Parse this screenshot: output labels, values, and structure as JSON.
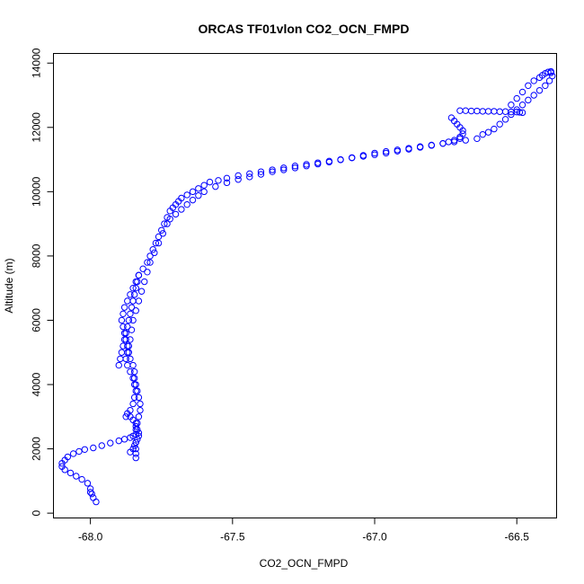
{
  "chart_data": {
    "type": "scatter",
    "title": "ORCAS TF01vlon CO2_OCN_FMPD",
    "xlabel": "CO2_OCN_FMPD",
    "ylabel": "Altitude (m)",
    "xlim": [
      -68.13,
      -66.36
    ],
    "ylim": [
      -150,
      14300
    ],
    "xticks": [
      -68.0,
      -67.5,
      -67.0,
      -66.5
    ],
    "xtick_labels": [
      "-68.0",
      "-67.5",
      "-67.0",
      "-66.5"
    ],
    "yticks": [
      0,
      2000,
      4000,
      6000,
      8000,
      10000,
      12000,
      14000
    ],
    "ytick_labels": [
      "0",
      "2000",
      "4000",
      "6000",
      "8000",
      "10000",
      "12000",
      "14000"
    ],
    "grid": false,
    "legend": "none",
    "marker": "open-circle",
    "color": "#0000ff",
    "series": [
      {
        "x": [
          -67.98,
          -67.99,
          -67.995,
          -68.0,
          -68.0,
          -68.01,
          -68.03,
          -68.05,
          -68.07,
          -68.09,
          -68.1,
          -68.1,
          -68.09,
          -68.08,
          -68.06,
          -68.04,
          -68.02,
          -67.99,
          -67.96,
          -67.93,
          -67.9,
          -67.88,
          -67.86,
          -67.85,
          -67.84,
          -67.84,
          -67.84,
          -67.84,
          -67.84
        ],
        "y": [
          350,
          480,
          600,
          650,
          760,
          930,
          1050,
          1150,
          1250,
          1350,
          1450,
          1550,
          1650,
          1750,
          1850,
          1920,
          1980,
          2030,
          2100,
          2180,
          2250,
          2300,
          2350,
          2400,
          2450,
          2200,
          2000,
          1850,
          1720
        ]
      },
      {
        "x": [
          -67.84,
          -67.835,
          -67.83,
          -67.825,
          -67.825,
          -67.83,
          -67.835,
          -67.84,
          -67.845,
          -67.845,
          -67.85,
          -67.86,
          -67.865,
          -67.87,
          -67.875,
          -67.88,
          -67.885,
          -67.89,
          -67.885,
          -67.88,
          -67.87,
          -67.86,
          -67.85,
          -67.84,
          -67.83,
          -67.815,
          -67.8,
          -67.79,
          -67.78,
          -67.77,
          -67.76,
          -67.75,
          -67.74,
          -67.73,
          -67.72,
          -67.71,
          -67.7
        ],
        "y": [
          2600,
          2800,
          3000,
          3200,
          3400,
          3600,
          3800,
          4000,
          4200,
          4400,
          4600,
          4800,
          5000,
          5200,
          5400,
          5600,
          5800,
          6000,
          6200,
          6400,
          6600,
          6800,
          7000,
          7200,
          7400,
          7600,
          7800,
          8000,
          8200,
          8400,
          8600,
          8800,
          9000,
          9200,
          9400,
          9500,
          9600
        ]
      },
      {
        "x": [
          -67.69,
          -67.68,
          -67.66,
          -67.64,
          -67.62,
          -67.6,
          -67.58,
          -67.55,
          -67.52,
          -67.48,
          -67.44,
          -67.4,
          -67.36,
          -67.32,
          -67.28,
          -67.24,
          -67.2,
          -67.16,
          -67.12,
          -67.08,
          -67.04,
          -67.0,
          -66.96,
          -66.92,
          -66.88,
          -66.84,
          -66.8,
          -66.76,
          -66.74,
          -66.72,
          -66.7
        ],
        "y": [
          9700,
          9800,
          9900,
          10000,
          10100,
          10200,
          10300,
          10350,
          10420,
          10500,
          10560,
          10620,
          10680,
          10740,
          10800,
          10850,
          10900,
          10950,
          11000,
          11050,
          11100,
          11150,
          11200,
          11260,
          11320,
          11380,
          11440,
          11500,
          11550,
          11600,
          11650
        ]
      },
      {
        "x": [
          -66.7,
          -66.69,
          -66.69,
          -66.7,
          -66.71,
          -66.72,
          -66.73,
          -66.7,
          -66.68,
          -66.66,
          -66.64,
          -66.62,
          -66.6,
          -66.58,
          -66.56,
          -66.54,
          -66.52,
          -66.5,
          -66.49,
          -66.48
        ],
        "y": [
          11700,
          11800,
          11900,
          12000,
          12100,
          12200,
          12300,
          12520,
          12520,
          12510,
          12510,
          12500,
          12500,
          12500,
          12490,
          12490,
          12480,
          12480,
          12470,
          12460
        ]
      },
      {
        "x": [
          -66.52,
          -66.5,
          -66.48,
          -66.46,
          -66.44,
          -66.42,
          -66.41,
          -66.4,
          -66.39,
          -66.38,
          -66.38,
          -66.375,
          -66.385,
          -66.4,
          -66.42,
          -66.44,
          -66.46,
          -66.48,
          -66.5,
          -66.52,
          -66.54,
          -66.56,
          -66.58,
          -66.6,
          -66.62
        ],
        "y": [
          12700,
          12900,
          13100,
          13300,
          13450,
          13550,
          13620,
          13680,
          13720,
          13740,
          13700,
          13600,
          13450,
          13300,
          13150,
          13000,
          12850,
          12700,
          12550,
          12400,
          12250,
          12100,
          11950,
          11850,
          11780
        ]
      },
      {
        "x": [
          -66.64,
          -66.68,
          -66.72,
          -66.76,
          -66.8,
          -66.84,
          -66.88,
          -66.92,
          -66.96,
          -67.0,
          -67.04,
          -67.08,
          -67.12,
          -67.16,
          -67.2,
          -67.24,
          -67.28,
          -67.32,
          -67.36,
          -67.4,
          -67.44,
          -67.48,
          -67.52,
          -67.56,
          -67.6,
          -67.62,
          -67.64,
          -67.66,
          -67.68,
          -67.7,
          -67.72
        ],
        "y": [
          11650,
          11600,
          11550,
          11500,
          11450,
          11400,
          11350,
          11300,
          11250,
          11200,
          11130,
          11060,
          10990,
          10920,
          10860,
          10800,
          10740,
          10680,
          10620,
          10540,
          10460,
          10380,
          10280,
          10160,
          10000,
          9880,
          9740,
          9600,
          9450,
          9300,
          9150
        ]
      },
      {
        "x": [
          -67.73,
          -67.745,
          -67.76,
          -67.775,
          -67.79,
          -67.8,
          -67.81,
          -67.82,
          -67.83,
          -67.84,
          -67.85,
          -67.855,
          -67.86,
          -67.865,
          -67.87,
          -67.875,
          -67.87,
          -67.86,
          -67.85,
          -67.845,
          -67.84,
          -67.845,
          -67.85,
          -67.86,
          -67.87,
          -67.875
        ],
        "y": [
          9000,
          8700,
          8400,
          8100,
          7800,
          7500,
          7200,
          6900,
          6600,
          6300,
          6000,
          5700,
          5400,
          5200,
          5000,
          4800,
          4600,
          4400,
          4200,
          4000,
          3800,
          3600,
          3400,
          3200,
          3100,
          3000
        ]
      },
      {
        "x": [
          -67.9,
          -67.895,
          -67.89,
          -67.885,
          -67.88,
          -67.875,
          -67.87,
          -67.865,
          -67.86,
          -67.855,
          -67.85,
          -67.845,
          -67.84,
          -67.835,
          -67.83
        ],
        "y": [
          4600,
          4800,
          5000,
          5200,
          5400,
          5600,
          5800,
          6000,
          6200,
          6400,
          6600,
          6800,
          7000,
          7200,
          7400
        ]
      },
      {
        "x": [
          -67.86,
          -67.85,
          -67.84,
          -67.84,
          -67.835,
          -67.83,
          -67.83,
          -67.835,
          -67.84,
          -67.845,
          -67.85,
          -67.86
        ],
        "y": [
          3000,
          2900,
          2800,
          2700,
          2600,
          2500,
          2400,
          2300,
          2200,
          2100,
          2000,
          1900
        ]
      }
    ]
  }
}
